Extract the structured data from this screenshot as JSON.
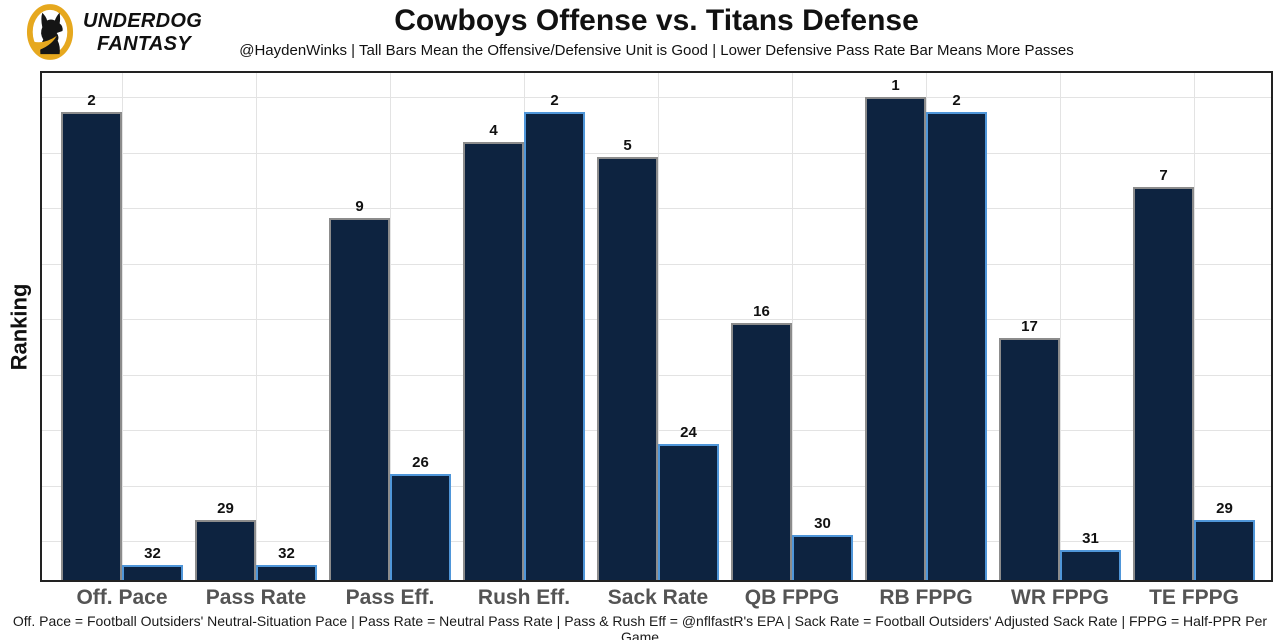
{
  "logo": {
    "line1": "UNDERDOG",
    "line2": "FANTASY"
  },
  "header": {
    "title": "Cowboys Offense vs. Titans Defense",
    "subtitle": "@HaydenWinks | Tall Bars Mean the Offensive/Defensive Unit is Good | Lower Defensive Pass Rate Bar Means More Passes"
  },
  "chart_data": {
    "type": "bar",
    "title": "Cowboys Offense vs. Titans Defense",
    "ylabel": "Ranking",
    "categories": [
      "Off. Pace",
      "Pass Rate",
      "Pass Eff.",
      "Rush Eff.",
      "Sack Rate",
      "QB FPPG",
      "RB FPPG",
      "WR FPPG",
      "TE FPPG"
    ],
    "series": [
      {
        "name": "Cowboys Offense",
        "values": [
          2,
          29,
          9,
          4,
          5,
          16,
          1,
          17,
          7
        ],
        "role": "offense",
        "edge_color": "#8c8c8c"
      },
      {
        "name": "Titans Defense",
        "values": [
          32,
          32,
          26,
          2,
          24,
          30,
          2,
          31,
          29
        ],
        "role": "defense",
        "edge_color": "#4f96d9"
      }
    ],
    "value_is_rank": true,
    "bar_height_rule": "bar height proportional to (33 - rank); taller bar = better ranking",
    "ylim": [
      0,
      34
    ],
    "grid": true,
    "legend": "none",
    "bar_fill": "#0d2340"
  },
  "footer": {
    "note": "Off. Pace = Football Outsiders' Neutral-Situation Pace | Pass Rate = Neutral Pass Rate | Pass & Rush Eff = @nflfastR's EPA | Sack Rate = Football Outsiders' Adjusted Sack Rate | FPPG = Half-PPR Per Game"
  },
  "colors": {
    "bar_fill": "#0d2340",
    "offense_edge": "#8c8c8c",
    "defense_edge": "#4f96d9",
    "logo_gold": "#e6a81e",
    "grid": "#e3e3e3",
    "axis": "#222222",
    "xlabel_gray": "#545454"
  }
}
